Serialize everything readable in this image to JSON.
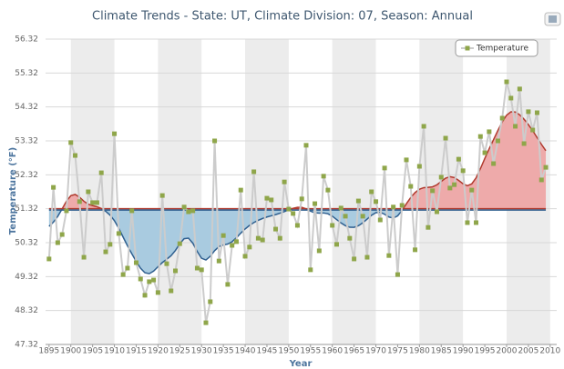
{
  "chart_data": {
    "type": "line",
    "title": "Climate Trends - State: UT, Climate Division: 07, Season: Annual",
    "x_label": "Year",
    "y_label": "Temperature (°F)",
    "x": [
      1895,
      1896,
      1897,
      1898,
      1899,
      1900,
      1901,
      1902,
      1903,
      1904,
      1905,
      1906,
      1907,
      1908,
      1909,
      1910,
      1911,
      1912,
      1913,
      1914,
      1915,
      1916,
      1917,
      1918,
      1919,
      1920,
      1921,
      1922,
      1923,
      1924,
      1925,
      1926,
      1927,
      1928,
      1929,
      1930,
      1931,
      1932,
      1933,
      1934,
      1935,
      1936,
      1937,
      1938,
      1939,
      1940,
      1941,
      1942,
      1943,
      1944,
      1945,
      1946,
      1947,
      1948,
      1949,
      1950,
      1951,
      1952,
      1953,
      1954,
      1955,
      1956,
      1957,
      1958,
      1959,
      1960,
      1961,
      1962,
      1963,
      1964,
      1965,
      1966,
      1967,
      1968,
      1969,
      1970,
      1971,
      1972,
      1973,
      1974,
      1975,
      1976,
      1977,
      1978,
      1979,
      1980,
      1981,
      1982,
      1983,
      1984,
      1985,
      1986,
      1987,
      1988,
      1989,
      1990,
      1991,
      1992,
      1993,
      1994,
      1995,
      1996,
      1997,
      1998,
      1999,
      2000,
      2001,
      2002,
      2003,
      2004,
      2005,
      2006,
      2007,
      2008,
      2009
    ],
    "series": [
      {
        "name": "Temperature",
        "color": "#8fa64a",
        "line_color": "#cccccc",
        "values": [
          49.84,
          51.95,
          50.32,
          50.56,
          51.26,
          53.27,
          52.89,
          51.53,
          49.89,
          51.82,
          51.5,
          51.5,
          52.38,
          50.05,
          50.27,
          53.53,
          50.59,
          49.38,
          49.57,
          51.26,
          49.73,
          49.25,
          48.77,
          49.17,
          49.22,
          48.85,
          51.71,
          49.7,
          48.9,
          49.49,
          50.29,
          51.37,
          51.23,
          51.26,
          49.57,
          49.52,
          47.96,
          48.58,
          53.32,
          49.78,
          50.53,
          49.09,
          50.24,
          50.35,
          51.87,
          49.92,
          50.19,
          52.41,
          50.45,
          50.4,
          51.63,
          51.58,
          50.72,
          50.45,
          52.11,
          51.31,
          51.18,
          50.83,
          51.61,
          53.19,
          49.52,
          51.47,
          50.08,
          52.28,
          51.87,
          50.83,
          50.27,
          51.34,
          51.1,
          50.45,
          49.84,
          51.55,
          51.1,
          49.89,
          51.82,
          51.53,
          50.99,
          52.52,
          49.94,
          51.37,
          49.38,
          51.42,
          52.76,
          51.98,
          50.11,
          52.57,
          53.75,
          50.77,
          51.85,
          51.23,
          52.25,
          53.4,
          51.93,
          52.03,
          52.78,
          52.44,
          50.91,
          51.87,
          50.91,
          53.45,
          52.97,
          53.59,
          52.65,
          53.32,
          53.99,
          55.06,
          54.58,
          53.75,
          54.85,
          53.24,
          54.18,
          53.64,
          54.15,
          52.17,
          52.54
        ]
      }
    ],
    "baseline": 51.32,
    "above_color": "#eeaaaa",
    "below_color": "#a9cbe0",
    "xlim": [
      1894.2,
      2011.5
    ],
    "xticks": [
      1895,
      1900,
      1905,
      1910,
      1915,
      1920,
      1925,
      1930,
      1935,
      1940,
      1945,
      1950,
      1955,
      1960,
      1965,
      1970,
      1975,
      1980,
      1985,
      1990,
      1995,
      2000,
      2005,
      2010
    ],
    "ylim": [
      47.32,
      56.32
    ],
    "yticks": [
      47.32,
      48.32,
      49.32,
      50.32,
      51.32,
      52.32,
      53.32,
      54.32,
      55.32,
      56.32
    ],
    "grid": true,
    "legend": "top-right"
  }
}
